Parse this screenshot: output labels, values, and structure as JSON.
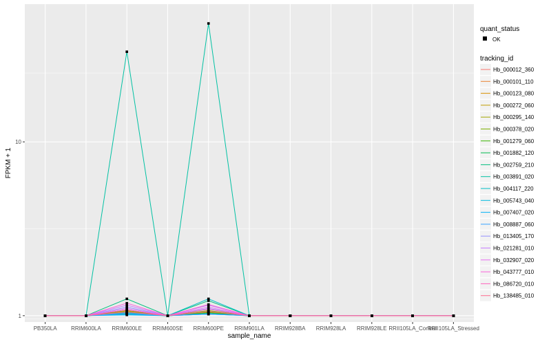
{
  "chart_data": {
    "type": "line",
    "xlabel": "sample_name",
    "ylabel": "FPKM + 1",
    "y_scale": "log10",
    "ylim": [
      0.92,
      62
    ],
    "y_ticks": [
      1,
      10
    ],
    "y_tick_labels": [
      "1",
      "10"
    ],
    "categories": [
      "PB350LA",
      "RRIM600LA",
      "RRIM600LE",
      "RRIM600SE",
      "RRIM600PE",
      "RRIM901LA",
      "RRIM928BA",
      "RRIM928LA",
      "RRIM928LE",
      "RRII105LA_Control",
      "RRII105LA_Stressed"
    ],
    "grid": true,
    "legend_position": "right",
    "legend_shape": {
      "title": "quant_status",
      "items": [
        {
          "label": "OK",
          "symbol": "square"
        }
      ]
    },
    "legend_color_title": "tracking_id",
    "series": [
      {
        "name": "Hb_000012_360",
        "color": "#F8766D",
        "values": [
          1,
          1,
          1.03,
          1,
          1.02,
          1,
          1,
          1,
          1,
          1,
          1
        ]
      },
      {
        "name": "Hb_000101_110",
        "color": "#EA8331",
        "values": [
          1,
          1,
          1.05,
          1,
          1.04,
          1,
          1,
          1,
          1,
          1,
          1
        ]
      },
      {
        "name": "Hb_000123_080",
        "color": "#D89000",
        "values": [
          1,
          1,
          1.07,
          1,
          1.06,
          1,
          1,
          1,
          1,
          1,
          1
        ]
      },
      {
        "name": "Hb_000272_060",
        "color": "#C09B00",
        "values": [
          1,
          1,
          1.04,
          1,
          1.05,
          1,
          1,
          1,
          1,
          1,
          1
        ]
      },
      {
        "name": "Hb_000295_140",
        "color": "#A3A500",
        "values": [
          1,
          1,
          1.02,
          1,
          1.03,
          1,
          1,
          1,
          1,
          1,
          1
        ]
      },
      {
        "name": "Hb_000378_020",
        "color": "#7CAE00",
        "values": [
          1,
          1,
          1.06,
          1,
          1.07,
          1,
          1,
          1,
          1,
          1,
          1
        ]
      },
      {
        "name": "Hb_001279_060",
        "color": "#39B600",
        "values": [
          1,
          1,
          1.03,
          1,
          1.04,
          1,
          1,
          1,
          1,
          1,
          1
        ]
      },
      {
        "name": "Hb_001882_120",
        "color": "#00BB4E",
        "values": [
          1,
          1,
          1.08,
          1,
          1.06,
          1,
          1,
          1,
          1,
          1,
          1
        ]
      },
      {
        "name": "Hb_002759_210",
        "color": "#00BF7D",
        "values": [
          1,
          1,
          1.25,
          1,
          1.22,
          1,
          1,
          1,
          1,
          1,
          1
        ]
      },
      {
        "name": "Hb_003891_020",
        "color": "#00C1A3",
        "values": [
          1,
          1,
          33,
          1,
          48,
          1,
          1,
          1,
          1,
          1,
          1
        ]
      },
      {
        "name": "Hb_004117_220",
        "color": "#00BFC4",
        "values": [
          1,
          1,
          1.04,
          1,
          1.25,
          1,
          1,
          1,
          1,
          1,
          1
        ]
      },
      {
        "name": "Hb_005743_040",
        "color": "#00BAE0",
        "values": [
          1,
          1,
          1.02,
          1,
          1.03,
          1,
          1,
          1,
          1,
          1,
          1
        ]
      },
      {
        "name": "Hb_007407_020",
        "color": "#00B0F6",
        "values": [
          1,
          1,
          1.01,
          1,
          1.02,
          1,
          1,
          1,
          1,
          1,
          1
        ]
      },
      {
        "name": "Hb_008887_060",
        "color": "#35A2FF",
        "values": [
          1,
          1,
          1.03,
          1,
          1.02,
          1,
          1,
          1,
          1,
          1,
          1
        ]
      },
      {
        "name": "Hb_013405_170",
        "color": "#9590FF",
        "values": [
          1,
          1,
          1.12,
          1,
          1.1,
          1,
          1,
          1,
          1,
          1,
          1
        ]
      },
      {
        "name": "Hb_021281_010",
        "color": "#C77CFF",
        "values": [
          1,
          1,
          1.15,
          1,
          1.15,
          1,
          1,
          1,
          1,
          1,
          1
        ]
      },
      {
        "name": "Hb_032907_020",
        "color": "#E76BF3",
        "values": [
          1,
          1,
          1.1,
          1,
          1.12,
          1,
          1,
          1,
          1,
          1,
          1
        ]
      },
      {
        "name": "Hb_043777_010",
        "color": "#FA62DB",
        "values": [
          1,
          1,
          1.18,
          1,
          1.16,
          1,
          1,
          1,
          1,
          1,
          1
        ]
      },
      {
        "name": "Hb_086720_010",
        "color": "#FF62BC",
        "values": [
          1,
          1,
          1.08,
          1,
          1.09,
          1,
          1,
          1,
          1,
          1,
          1
        ]
      },
      {
        "name": "Hb_138485_010",
        "color": "#FF6C91",
        "values": [
          1,
          1,
          1.05,
          1,
          1.06,
          1,
          1,
          1,
          1,
          1,
          1
        ]
      }
    ]
  }
}
